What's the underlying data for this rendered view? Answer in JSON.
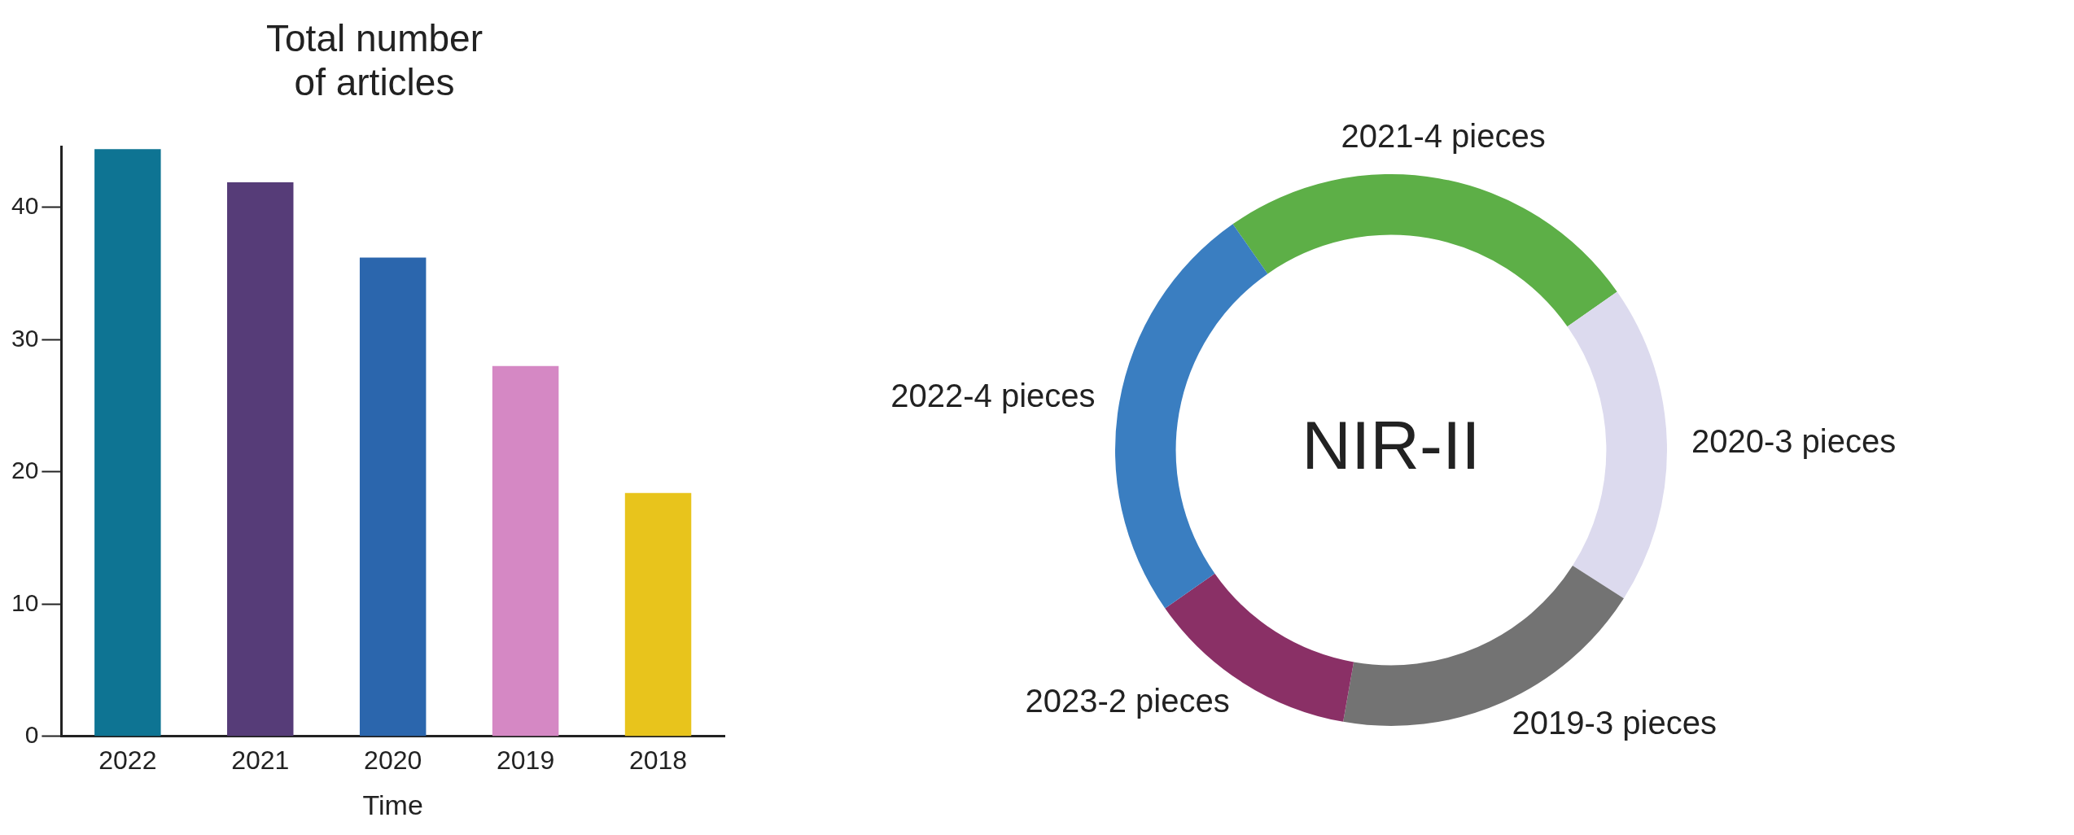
{
  "chart_data": [
    {
      "type": "bar",
      "title": "Total number of articles",
      "xlabel": "Time",
      "categories": [
        "2022",
        "2021",
        "2020",
        "2019",
        "2018"
      ],
      "values": [
        44.4,
        41.9,
        36.2,
        28.0,
        18.4
      ],
      "colors": [
        "#0e7493",
        "#563c78",
        "#2b66ad",
        "#d588c4",
        "#e8c41c"
      ],
      "ylim": [
        0,
        44.6
      ],
      "yticks": [
        0,
        10,
        20,
        30,
        40
      ],
      "grid": false,
      "legend": false
    },
    {
      "type": "donut",
      "categories": [
        "2021-4 pieces",
        "2020-3 pieces",
        "2019-3 pieces",
        "2023-2 pieces",
        "2022-4 pieces"
      ],
      "values": [
        25,
        18.75,
        18.75,
        12.5,
        25
      ],
      "colors": [
        "#5daf47",
        "#dcdaee",
        "#737373",
        "#8a3066",
        "#3a7ec1"
      ],
      "annotations": [
        "NIR-II"
      ],
      "legend": false
    }
  ]
}
